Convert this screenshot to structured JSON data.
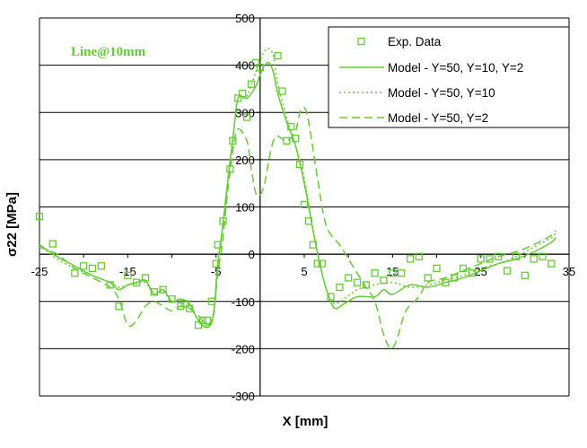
{
  "chart_data": {
    "type": "line",
    "xlabel": "X [mm]",
    "ylabel": "σ22 [MPa]",
    "annotation": "Line@10mm",
    "xlim": [
      -25,
      35
    ],
    "ylim": [
      -300,
      500
    ],
    "x_ticks": [
      -25,
      -15,
      -5,
      5,
      15,
      25,
      35
    ],
    "y_ticks": [
      -300,
      -200,
      -100,
      0,
      100,
      200,
      300,
      400,
      500
    ],
    "grid": "horizontal",
    "legend_position": "top-right",
    "color": "#66cc33",
    "series": [
      {
        "name": "Exp. Data",
        "marker": "square",
        "line": "none",
        "points": [
          [
            -25,
            80
          ],
          [
            -23.5,
            22
          ],
          [
            -21,
            -40
          ],
          [
            -20,
            -25
          ],
          [
            -19,
            -30
          ],
          [
            -18,
            -25
          ],
          [
            -17,
            -65
          ],
          [
            -16,
            -110
          ],
          [
            -15,
            -45
          ],
          [
            -14,
            -60
          ],
          [
            -13,
            -50
          ],
          [
            -12,
            -80
          ],
          [
            -11,
            -75
          ],
          [
            -10,
            -95
          ],
          [
            -9,
            -110
          ],
          [
            -8.5,
            -105
          ],
          [
            -8,
            -115
          ],
          [
            -7,
            -150
          ],
          [
            -6.5,
            -140
          ],
          [
            -6,
            -140
          ],
          [
            -5.5,
            -100
          ],
          [
            -5,
            -20
          ],
          [
            -4.8,
            20
          ],
          [
            -4.2,
            70
          ],
          [
            -3.4,
            180
          ],
          [
            -3.1,
            240
          ],
          [
            -2.5,
            330
          ],
          [
            -2,
            340
          ],
          [
            -1.5,
            290
          ],
          [
            -1,
            360
          ],
          [
            -0.5,
            405
          ],
          [
            0,
            395
          ],
          [
            2,
            420
          ],
          [
            2.5,
            345
          ],
          [
            3,
            240
          ],
          [
            3.5,
            270
          ],
          [
            4,
            245
          ],
          [
            4.5,
            190
          ],
          [
            5,
            105
          ],
          [
            5.5,
            70
          ],
          [
            6,
            20
          ],
          [
            6.5,
            -20
          ],
          [
            7,
            -20
          ],
          [
            8,
            -90
          ],
          [
            9,
            -70
          ],
          [
            10,
            -50
          ],
          [
            11,
            -60
          ],
          [
            12,
            -65
          ],
          [
            13,
            -40
          ],
          [
            14,
            -55
          ],
          [
            15,
            -40
          ],
          [
            16,
            -40
          ],
          [
            17,
            -10
          ],
          [
            18,
            -5
          ],
          [
            19,
            -50
          ],
          [
            20,
            -30
          ],
          [
            21,
            -60
          ],
          [
            22,
            -50
          ],
          [
            23,
            -30
          ],
          [
            24,
            -40
          ],
          [
            25,
            -10
          ],
          [
            26,
            -10
          ],
          [
            27,
            -5
          ],
          [
            28,
            -35
          ],
          [
            29,
            -5
          ],
          [
            30,
            -45
          ],
          [
            31,
            -10
          ],
          [
            32,
            -5
          ],
          [
            33,
            -20
          ]
        ]
      },
      {
        "name": "Model - Y=50, Y=10, Y=2",
        "line": "solid",
        "points": [
          [
            -25,
            20
          ],
          [
            -23,
            -5
          ],
          [
            -21,
            -25
          ],
          [
            -19,
            -45
          ],
          [
            -17,
            -60
          ],
          [
            -16,
            -75
          ],
          [
            -15,
            -65
          ],
          [
            -14,
            -60
          ],
          [
            -13,
            -55
          ],
          [
            -12,
            -85
          ],
          [
            -11,
            -75
          ],
          [
            -10,
            -100
          ],
          [
            -9,
            -95
          ],
          [
            -8,
            -105
          ],
          [
            -7,
            -140
          ],
          [
            -6,
            -155
          ],
          [
            -5.3,
            -130
          ],
          [
            -4.8,
            -20
          ],
          [
            -4.3,
            50
          ],
          [
            -3.7,
            150
          ],
          [
            -3,
            260
          ],
          [
            -2.5,
            330
          ],
          [
            -1.5,
            330
          ],
          [
            -0.5,
            355
          ],
          [
            0,
            380
          ],
          [
            0.5,
            400
          ],
          [
            1,
            405
          ],
          [
            1.5,
            385
          ],
          [
            2,
            340
          ],
          [
            3,
            280
          ],
          [
            4,
            230
          ],
          [
            5,
            150
          ],
          [
            6,
            50
          ],
          [
            7,
            -40
          ],
          [
            7.8,
            -90
          ],
          [
            8.5,
            -115
          ],
          [
            9.5,
            -105
          ],
          [
            11,
            -90
          ],
          [
            13,
            -90
          ],
          [
            14,
            -75
          ],
          [
            15,
            -85
          ],
          [
            17,
            -65
          ],
          [
            19,
            -70
          ],
          [
            21,
            -60
          ],
          [
            23,
            -50
          ],
          [
            25,
            -35
          ],
          [
            27,
            -20
          ],
          [
            29,
            -10
          ],
          [
            31,
            5
          ],
          [
            33,
            25
          ],
          [
            33.5,
            35
          ]
        ]
      },
      {
        "name": "Model - Y=50, Y=10",
        "line": "dotted",
        "points": [
          [
            -25,
            20
          ],
          [
            -23,
            -10
          ],
          [
            -21,
            -30
          ],
          [
            -19,
            -45
          ],
          [
            -17,
            -60
          ],
          [
            -16,
            -70
          ],
          [
            -15,
            -65
          ],
          [
            -14,
            -62
          ],
          [
            -13,
            -60
          ],
          [
            -12,
            -85
          ],
          [
            -11,
            -78
          ],
          [
            -10,
            -100
          ],
          [
            -9,
            -97
          ],
          [
            -8,
            -108
          ],
          [
            -7,
            -140
          ],
          [
            -6,
            -150
          ],
          [
            -5.3,
            -125
          ],
          [
            -4.8,
            -20
          ],
          [
            -4.3,
            50
          ],
          [
            -3.7,
            150
          ],
          [
            -3,
            260
          ],
          [
            -2.5,
            330
          ],
          [
            -1.5,
            335
          ],
          [
            -0.5,
            385
          ],
          [
            0,
            410
          ],
          [
            0.5,
            430
          ],
          [
            1,
            435
          ],
          [
            1.5,
            420
          ],
          [
            2,
            360
          ],
          [
            3,
            290
          ],
          [
            4,
            230
          ],
          [
            5,
            160
          ],
          [
            6,
            50
          ],
          [
            7,
            -40
          ],
          [
            7.8,
            -90
          ],
          [
            8.5,
            -105
          ],
          [
            9.5,
            -95
          ],
          [
            11,
            -75
          ],
          [
            13,
            -65
          ],
          [
            15,
            -60
          ],
          [
            17,
            -70
          ],
          [
            19,
            -65
          ],
          [
            21,
            -55
          ],
          [
            23,
            -45
          ],
          [
            25,
            -30
          ],
          [
            27,
            -20
          ],
          [
            29,
            -5
          ],
          [
            31,
            15
          ],
          [
            33,
            35
          ],
          [
            33.5,
            45
          ]
        ]
      },
      {
        "name": "Model - Y=50, Y=2",
        "line": "dashed",
        "points": [
          [
            -25,
            15
          ],
          [
            -23,
            0
          ],
          [
            -21,
            -30
          ],
          [
            -19,
            -50
          ],
          [
            -17,
            -70
          ],
          [
            -16,
            -95
          ],
          [
            -15,
            -150
          ],
          [
            -14,
            -140
          ],
          [
            -13,
            -110
          ],
          [
            -12,
            -100
          ],
          [
            -11,
            -110
          ],
          [
            -10,
            -120
          ],
          [
            -9,
            -110
          ],
          [
            -8,
            -115
          ],
          [
            -7,
            -130
          ],
          [
            -6,
            -150
          ],
          [
            -5.3,
            -130
          ],
          [
            -4.8,
            -40
          ],
          [
            -4.3,
            20
          ],
          [
            -3.7,
            130
          ],
          [
            -3,
            230
          ],
          [
            -2.5,
            265
          ],
          [
            -1.5,
            240
          ],
          [
            -1,
            180
          ],
          [
            -0.5,
            130
          ],
          [
            0,
            125
          ],
          [
            0.5,
            150
          ],
          [
            1,
            200
          ],
          [
            1.5,
            240
          ],
          [
            2,
            250
          ],
          [
            3,
            240
          ],
          [
            4,
            260
          ],
          [
            4.5,
            300
          ],
          [
            5,
            310
          ],
          [
            5.5,
            280
          ],
          [
            6.5,
            160
          ],
          [
            7.5,
            60
          ],
          [
            9,
            20
          ],
          [
            10,
            -10
          ],
          [
            11,
            -40
          ],
          [
            12,
            -70
          ],
          [
            13,
            -100
          ],
          [
            14,
            -170
          ],
          [
            14.8,
            -200
          ],
          [
            15.5,
            -180
          ],
          [
            16.5,
            -120
          ],
          [
            18,
            -90
          ],
          [
            19,
            -60
          ],
          [
            21,
            -50
          ],
          [
            23,
            -35
          ],
          [
            25,
            -20
          ],
          [
            27,
            -5
          ],
          [
            29,
            5
          ],
          [
            31,
            20
          ],
          [
            33,
            40
          ],
          [
            33.5,
            50
          ]
        ]
      }
    ]
  }
}
